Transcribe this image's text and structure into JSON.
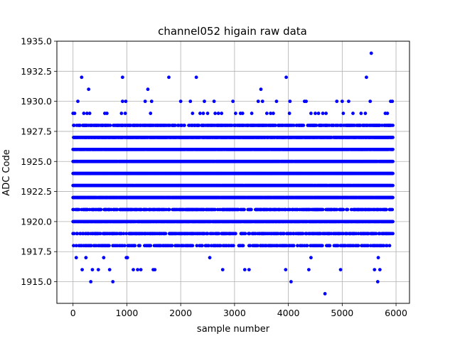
{
  "chart_data": {
    "type": "scatter",
    "title": "channel052 higain raw data",
    "xlabel": "sample number",
    "ylabel": "ADC Code",
    "xlim": [
      -300,
      6250
    ],
    "ylim": [
      1913.2,
      1935.0
    ],
    "xticks": [
      0,
      1000,
      2000,
      3000,
      4000,
      5000,
      6000
    ],
    "xtick_labels": [
      "0",
      "1000",
      "2000",
      "3000",
      "4000",
      "5000",
      "6000"
    ],
    "yticks": [
      1915.0,
      1917.5,
      1920.0,
      1922.5,
      1925.0,
      1927.5,
      1930.0,
      1932.5,
      1935.0
    ],
    "ytick_labels": [
      "1915.0",
      "1917.5",
      "1920.0",
      "1922.5",
      "1925.0",
      "1927.5",
      "1930.0",
      "1932.5",
      "1935.0"
    ],
    "grid": true,
    "marker_color": "#0000ff",
    "x_range": [
      0,
      5940
    ],
    "levels": [
      {
        "y": 1914,
        "x": [
          4680
        ]
      },
      {
        "y": 1915,
        "x": [
          330,
          740,
          4050,
          5660
        ]
      },
      {
        "y": 1916,
        "x": [
          170,
          360,
          470,
          680,
          1120,
          1200,
          1260,
          1490,
          1520,
          2780,
          3190,
          3270,
          3950,
          4380,
          4970,
          5600,
          5700
        ]
      },
      {
        "y": 1917,
        "x": [
          60,
          240,
          570,
          990,
          1010,
          2540,
          4420,
          5670
        ]
      },
      {
        "y": 1918,
        "density": 0.45
      },
      {
        "y": 1919,
        "density": 0.55
      },
      {
        "y": 1920,
        "density": 0.88
      },
      {
        "y": 1921,
        "density": 0.6
      },
      {
        "y": 1922,
        "density": 0.97
      },
      {
        "y": 1923,
        "density": 0.98
      },
      {
        "y": 1924,
        "density": 1.0
      },
      {
        "y": 1925,
        "density": 0.98
      },
      {
        "y": 1926,
        "density": 0.97
      },
      {
        "y": 1927,
        "density": 0.88
      },
      {
        "y": 1928,
        "density": 0.6
      },
      {
        "y": 1929,
        "x": [
          0,
          30,
          200,
          260,
          310,
          590,
          630,
          900,
          970,
          1440,
          2220,
          2360,
          2420,
          2500,
          2640,
          2700,
          2760,
          3020,
          3110,
          3150,
          3320,
          3600,
          3670,
          3720,
          4020,
          4420,
          4500,
          4560,
          4640,
          4700,
          5020,
          5200,
          5350,
          5430,
          5800,
          5840
        ]
      },
      {
        "y": 1930,
        "x": [
          90,
          920,
          980,
          1340,
          1460,
          2000,
          2180,
          2440,
          2620,
          2970,
          3440,
          3520,
          3780,
          4030,
          4300,
          4330,
          4900,
          5000,
          5120,
          5520,
          5900,
          5930
        ]
      },
      {
        "y": 1931,
        "x": [
          290,
          1390,
          3490
        ]
      },
      {
        "y": 1932,
        "x": [
          160,
          920,
          1780,
          2290,
          3960,
          5450
        ]
      },
      {
        "y": 1934,
        "x": [
          5540
        ]
      }
    ]
  }
}
